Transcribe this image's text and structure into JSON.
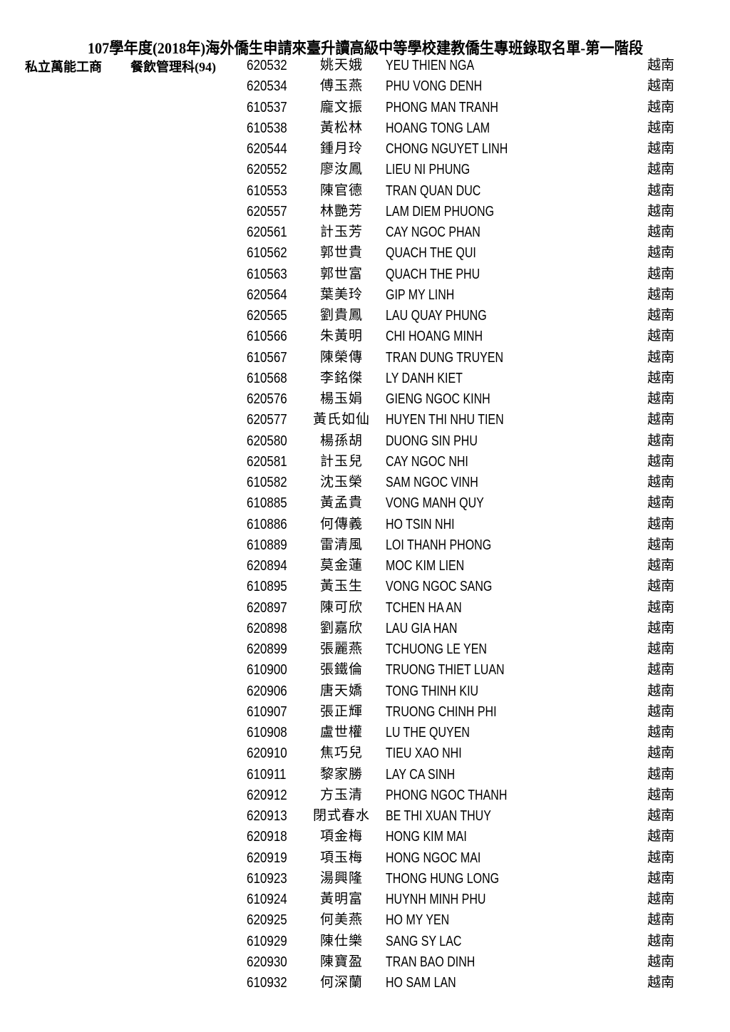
{
  "title": "107學年度(2018年)海外僑生申請來臺升讀高級中等學校建教僑生專班錄取名單-第一階段",
  "school": "私立萬能工商",
  "department": "餐飲管理科(94)",
  "rows": [
    {
      "id": "620532",
      "zh": "姚天娥",
      "en": "YEU THIEN NGA",
      "country": "越南"
    },
    {
      "id": "620534",
      "zh": "傅玉燕",
      "en": "PHU VONG DENH",
      "country": "越南"
    },
    {
      "id": "610537",
      "zh": "龐文振",
      "en": "PHONG MAN TRANH",
      "country": "越南"
    },
    {
      "id": "610538",
      "zh": "黃松林",
      "en": "HOANG TONG LAM",
      "country": "越南"
    },
    {
      "id": "620544",
      "zh": "鍾月玲",
      "en": "CHONG NGUYET LINH",
      "country": "越南"
    },
    {
      "id": "620552",
      "zh": "廖汝鳳",
      "en": "LIEU NI PHUNG",
      "country": "越南"
    },
    {
      "id": "610553",
      "zh": "陳官德",
      "en": "TRAN QUAN DUC",
      "country": "越南"
    },
    {
      "id": "620557",
      "zh": "林艷芳",
      "en": "LAM DIEM PHUONG",
      "country": "越南"
    },
    {
      "id": "620561",
      "zh": "計玉芳",
      "en": "CAY NGOC PHAN",
      "country": "越南"
    },
    {
      "id": "610562",
      "zh": "郭世貴",
      "en": "QUACH THE QUI",
      "country": "越南"
    },
    {
      "id": "610563",
      "zh": "郭世富",
      "en": "QUACH THE PHU",
      "country": "越南"
    },
    {
      "id": "620564",
      "zh": "葉美玲",
      "en": "GIP MY LINH",
      "country": "越南"
    },
    {
      "id": "620565",
      "zh": "劉貴鳳",
      "en": "LAU QUAY PHUNG",
      "country": "越南"
    },
    {
      "id": "610566",
      "zh": "朱黃明",
      "en": "CHI HOANG MINH",
      "country": "越南"
    },
    {
      "id": "610567",
      "zh": "陳榮傳",
      "en": "TRAN DUNG TRUYEN",
      "country": "越南"
    },
    {
      "id": "610568",
      "zh": "李銘傑",
      "en": "LY DANH KIET",
      "country": "越南"
    },
    {
      "id": "620576",
      "zh": "楊玉娟",
      "en": "GIENG NGOC KINH",
      "country": "越南"
    },
    {
      "id": "620577",
      "zh": "黃氏如仙",
      "en": "HUYEN THI NHU TIEN",
      "country": "越南"
    },
    {
      "id": "620580",
      "zh": "楊孫胡",
      "en": "DUONG SIN PHU",
      "country": "越南"
    },
    {
      "id": "620581",
      "zh": "計玉兒",
      "en": "CAY NGOC NHI",
      "country": "越南"
    },
    {
      "id": "610582",
      "zh": "沈玉榮",
      "en": "SAM NGOC VINH",
      "country": "越南"
    },
    {
      "id": "610885",
      "zh": "黃孟貴",
      "en": "VONG MANH QUY",
      "country": "越南"
    },
    {
      "id": "610886",
      "zh": "何傳義",
      "en": "HO TSIN NHI",
      "country": "越南"
    },
    {
      "id": "610889",
      "zh": "雷清風",
      "en": "LOI THANH PHONG",
      "country": "越南"
    },
    {
      "id": "620894",
      "zh": "莫金蓮",
      "en": "MOC KIM LIEN",
      "country": "越南"
    },
    {
      "id": "610895",
      "zh": "黃玉生",
      "en": "VONG NGOC SANG",
      "country": "越南"
    },
    {
      "id": "620897",
      "zh": "陳可欣",
      "en": "TCHEN HA AN",
      "country": "越南"
    },
    {
      "id": "620898",
      "zh": "劉嘉欣",
      "en": "LAU GIA HAN",
      "country": "越南"
    },
    {
      "id": "620899",
      "zh": "張麗燕",
      "en": "TCHUONG LE YEN",
      "country": "越南"
    },
    {
      "id": "610900",
      "zh": "張鐵倫",
      "en": "TRUONG THIET LUAN",
      "country": "越南"
    },
    {
      "id": "620906",
      "zh": "唐天嬌",
      "en": "TONG THINH KIU",
      "country": "越南"
    },
    {
      "id": "610907",
      "zh": "張正輝",
      "en": "TRUONG CHINH PHI",
      "country": "越南"
    },
    {
      "id": "610908",
      "zh": "盧世權",
      "en": "LU THE QUYEN",
      "country": "越南"
    },
    {
      "id": "620910",
      "zh": "焦巧兒",
      "en": "TIEU XAO NHI",
      "country": "越南"
    },
    {
      "id": "610911",
      "zh": "黎家勝",
      "en": "LAY CA SINH",
      "country": "越南"
    },
    {
      "id": "620912",
      "zh": "方玉清",
      "en": "PHONG NGOC THANH",
      "country": "越南"
    },
    {
      "id": "620913",
      "zh": "閉式春水",
      "en": "BE THI XUAN THUY",
      "country": "越南"
    },
    {
      "id": "620918",
      "zh": "項金梅",
      "en": "HONG KIM MAI",
      "country": "越南"
    },
    {
      "id": "620919",
      "zh": "項玉梅",
      "en": "HONG NGOC MAI",
      "country": "越南"
    },
    {
      "id": "610923",
      "zh": "湯興隆",
      "en": "THONG HUNG LONG",
      "country": "越南"
    },
    {
      "id": "610924",
      "zh": "黃明富",
      "en": "HUYNH MINH PHU",
      "country": "越南"
    },
    {
      "id": "620925",
      "zh": "何美燕",
      "en": "HO MY YEN",
      "country": "越南"
    },
    {
      "id": "610929",
      "zh": "陳仕樂",
      "en": "SANG SY LAC",
      "country": "越南"
    },
    {
      "id": "620930",
      "zh": "陳寶盈",
      "en": "TRAN BAO DINH",
      "country": "越南"
    },
    {
      "id": "610932",
      "zh": "何深蘭",
      "en": "HO SAM LAN",
      "country": "越南"
    }
  ]
}
